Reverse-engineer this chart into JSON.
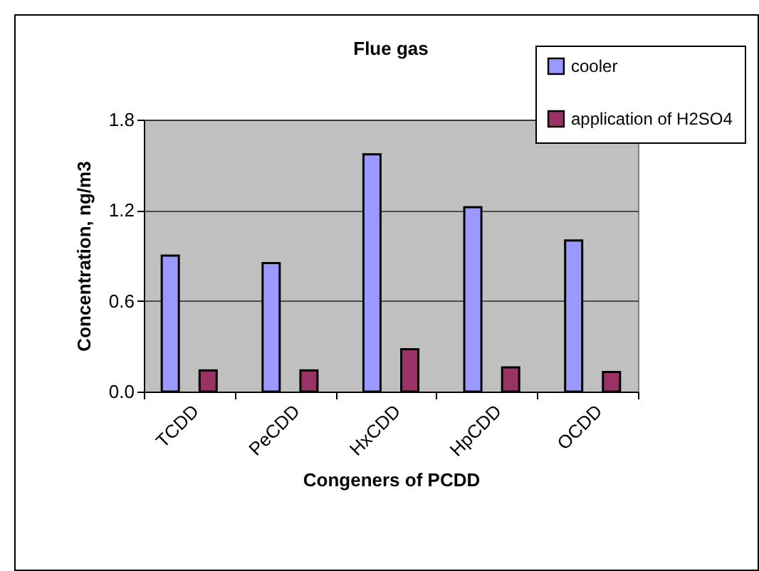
{
  "chart_data": {
    "type": "bar",
    "title": "Flue gas",
    "xlabel": "Congeners of PCDD",
    "ylabel": "Concentration, ng/m3",
    "categories": [
      "TCDD",
      "PeCDD",
      "HxCDD",
      "HpCDD",
      "OCDD"
    ],
    "series": [
      {
        "name": "cooler",
        "color": "#9999ff",
        "values": [
          0.9,
          0.85,
          1.57,
          1.22,
          1.0
        ]
      },
      {
        "name": "application of H2SO4",
        "color": "#993366",
        "values": [
          0.14,
          0.14,
          0.28,
          0.16,
          0.13
        ]
      }
    ],
    "ylim": [
      0,
      1.8
    ],
    "yticks": [
      {
        "value": 0,
        "label": "0.0"
      },
      {
        "value": 0.6,
        "label": "0.6"
      },
      {
        "value": 1.2,
        "label": "1.2"
      },
      {
        "value": 1.8,
        "label": "1.8"
      }
    ],
    "grid": "y",
    "legend": "top right"
  }
}
